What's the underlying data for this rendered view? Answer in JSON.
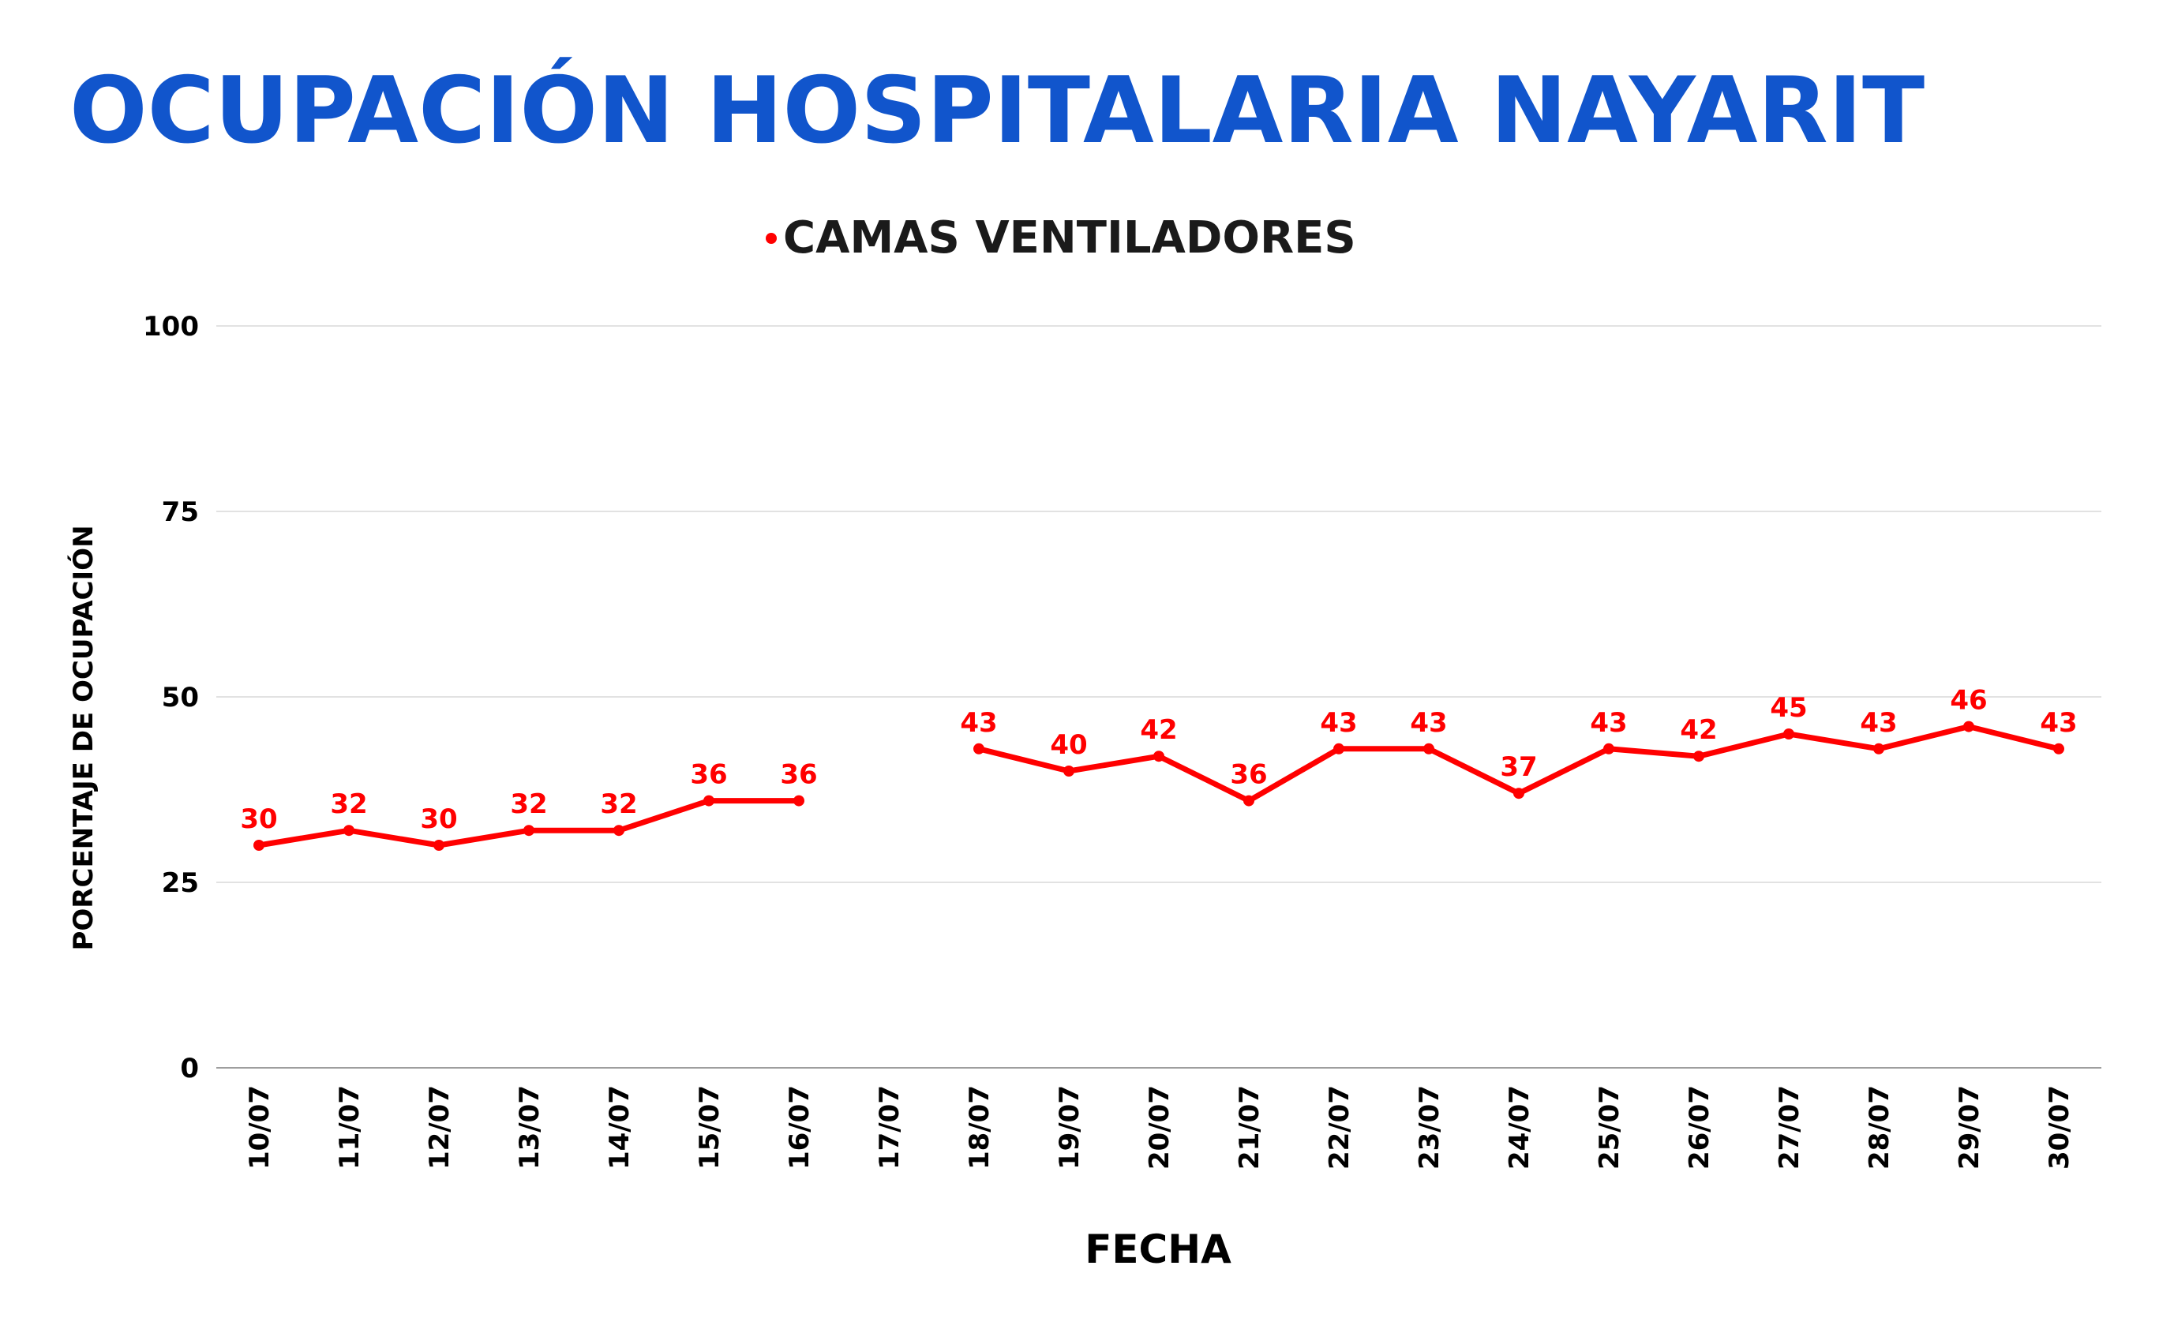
{
  "chart_data": {
    "type": "line",
    "title": "OCUPACIÓN HOSPITALARIA NAYARIT",
    "xlabel": "FECHA",
    "ylabel": "PORCENTAJE DE OCUPACIÓN",
    "ylim": [
      0,
      100
    ],
    "yticks": [
      "0",
      "25",
      "50",
      "75",
      "100"
    ],
    "grid": true,
    "legend_position": "top-center",
    "categories": [
      "10/07",
      "11/07",
      "12/07",
      "13/07",
      "14/07",
      "15/07",
      "16/07",
      "17/07",
      "18/07",
      "19/07",
      "20/07",
      "21/07",
      "22/07",
      "23/07",
      "24/07",
      "25/07",
      "26/07",
      "27/07",
      "28/07",
      "29/07",
      "30/07"
    ],
    "series": [
      {
        "name": "CAMAS VENTILADORES",
        "color": "#ff0000",
        "values": [
          30,
          32,
          30,
          32,
          32,
          36,
          36,
          null,
          43,
          40,
          42,
          36,
          43,
          43,
          37,
          43,
          42,
          45,
          43,
          46,
          43
        ]
      }
    ]
  },
  "colors": {
    "title": "#1155cc",
    "text": "#000000",
    "grid": "#e2e2e2",
    "axis": "#9e9e9e"
  }
}
